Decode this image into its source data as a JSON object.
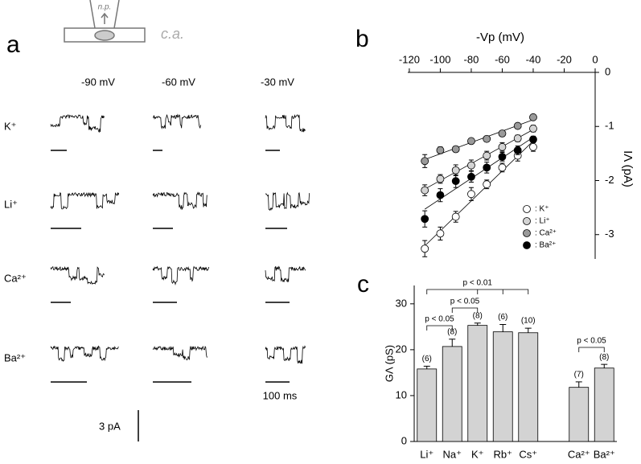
{
  "panel_a": {
    "label": "a",
    "pipette_label": "n.p.",
    "config_label": "c.a.",
    "voltages": [
      "-90 mV",
      "-60 mV",
      "-30 mV"
    ],
    "ions": [
      "K⁺",
      "Li⁺",
      "Ca²⁺",
      "Ba²⁺"
    ],
    "time_scale": "100 ms",
    "current_scale": "3 pA"
  },
  "chart_data": [
    {
      "type": "scatter",
      "label": "b",
      "title": "-Vp (mV)",
      "y_label": "IΛ (pA)",
      "xlim": [
        -121,
        0
      ],
      "xticks": [
        -120,
        -100,
        -80,
        -60,
        -40,
        -20,
        0
      ],
      "ylim": [
        -3.45,
        0
      ],
      "yticks": [
        0,
        -1,
        -2,
        -3
      ],
      "x": [
        -110,
        -100,
        -90,
        -80,
        -70,
        -60,
        -50,
        -40
      ],
      "series": [
        {
          "name": ": K⁺",
          "color": "#ffffff",
          "values": [
            -3.26,
            -2.98,
            -2.67,
            -2.25,
            -2.07,
            -1.76,
            -1.54,
            -1.38
          ],
          "errors": [
            0.15,
            0.12,
            0.1,
            0.12,
            0.08,
            0.08,
            0.1,
            0.08
          ]
        },
        {
          "name": ": Li⁺",
          "color": "#d4d4d4",
          "values": [
            -2.18,
            -1.97,
            -1.81,
            -1.72,
            -1.54,
            -1.38,
            -1.22,
            -1.04
          ],
          "errors": [
            0.1,
            0.08,
            0.1,
            0.1,
            0.08,
            0.08,
            0.06,
            0.06
          ]
        },
        {
          "name": ": Ca²⁺",
          "color": "#9a9a9a",
          "values": [
            -1.64,
            -1.44,
            -1.42,
            -1.27,
            -1.23,
            -1.13,
            -0.99,
            -0.83
          ],
          "errors": [
            0.12,
            0.06,
            0.05,
            0.05,
            0.05,
            0.05,
            0.05,
            0.05
          ]
        },
        {
          "name": ": Ba²⁺",
          "color": "#000000",
          "values": [
            -2.71,
            -2.27,
            -2.01,
            -1.93,
            -1.76,
            -1.56,
            -1.44,
            -1.24
          ],
          "errors": [
            0.15,
            0.12,
            0.12,
            0.1,
            0.1,
            0.08,
            0.08,
            0.06
          ]
        }
      ]
    },
    {
      "type": "bar",
      "label": "c",
      "y_label": "GΛ (pS)",
      "color": "#d3d3d3",
      "categories": [
        "Li⁺",
        "Na⁺",
        "K⁺",
        "Rb⁺",
        "Cs⁺",
        null,
        "Ca²⁺",
        "Ba²⁺"
      ],
      "values": [
        15.8,
        20.7,
        25.3,
        23.9,
        23.7,
        null,
        11.8,
        16.0
      ],
      "errors": [
        0.6,
        1.6,
        0.5,
        1.6,
        1.0,
        null,
        1.2,
        0.8
      ],
      "n_labels": [
        "(6)",
        "(8)",
        "(8)",
        "(6)",
        "(10)",
        null,
        "(7)",
        "(8)"
      ],
      "annotations": [
        "p < 0.05",
        "p < 0.05",
        "p < 0.01",
        "p < 0.05"
      ],
      "ylim": [
        0,
        34
      ],
      "yticks": [
        0,
        10,
        20,
        30
      ]
    }
  ]
}
